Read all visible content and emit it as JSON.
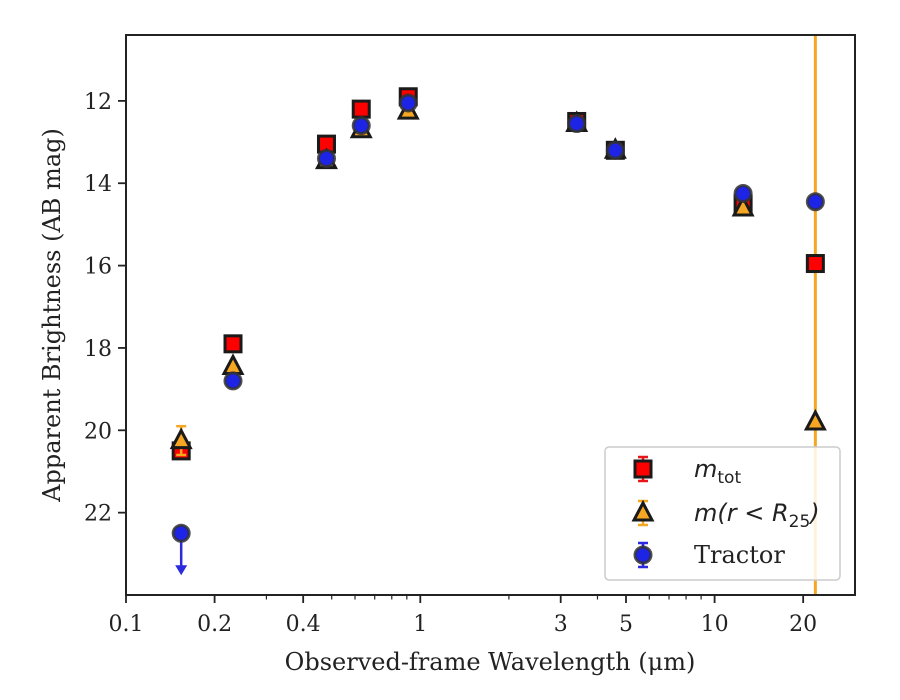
{
  "chart_data": {
    "type": "scatter",
    "xlabel": "Observed-frame Wavelength (μm)",
    "ylabel": "Apparent Brightness (AB mag)",
    "x_scale": "log",
    "xlim": [
      0.1,
      30
    ],
    "ylim": [
      24.0,
      10.4
    ],
    "y_inverted": true,
    "grid": false,
    "x_ticks": [
      0.1,
      0.2,
      0.4,
      1,
      3,
      5,
      10,
      20
    ],
    "x_tick_labels": [
      "0.1",
      "0.2",
      "0.4",
      "1",
      "3",
      "5",
      "10",
      "20"
    ],
    "y_ticks": [
      12,
      14,
      16,
      18,
      20,
      22
    ],
    "y_tick_labels": [
      "12",
      "14",
      "16",
      "18",
      "20",
      "22"
    ],
    "legend_position": "lower-right",
    "vertical_line": {
      "x": 22,
      "color": "#f5a623"
    },
    "series": [
      {
        "name": "m_tot",
        "marker": "square",
        "color": "#ff0000",
        "error_color": "#e8161a",
        "points": [
          {
            "x": 0.154,
            "y": 20.5,
            "err": 0.1
          },
          {
            "x": 0.231,
            "y": 17.9,
            "err": 0.05
          },
          {
            "x": 0.48,
            "y": 13.05,
            "err": 0.05
          },
          {
            "x": 0.63,
            "y": 12.2,
            "err": 0.05
          },
          {
            "x": 0.91,
            "y": 11.9,
            "err": 0.05
          },
          {
            "x": 3.4,
            "y": 12.5,
            "err": 0.05
          },
          {
            "x": 4.6,
            "y": 13.2,
            "err": 0.05
          },
          {
            "x": 12.5,
            "y": 14.5,
            "err": 0.05
          },
          {
            "x": 22,
            "y": 15.95,
            "err": 0.05
          }
        ]
      },
      {
        "name": "m(r < R25)",
        "marker": "triangle",
        "color": "#f5a623",
        "error_color": "#f5a623",
        "points": [
          {
            "x": 0.154,
            "y": 20.25,
            "err": 0.35
          },
          {
            "x": 0.231,
            "y": 18.45,
            "err": 0.05
          },
          {
            "x": 0.48,
            "y": 13.45,
            "err": 0.05
          },
          {
            "x": 0.63,
            "y": 12.7,
            "err": 0.05
          },
          {
            "x": 0.91,
            "y": 12.25,
            "err": 0.05
          },
          {
            "x": 3.4,
            "y": 12.55,
            "err": 0.05
          },
          {
            "x": 4.6,
            "y": 13.2,
            "err": 0.05
          },
          {
            "x": 12.5,
            "y": 14.6,
            "err": 0.05
          },
          {
            "x": 22,
            "y": 19.8,
            "err": 0.05
          }
        ]
      },
      {
        "name": "Tractor",
        "marker": "circle",
        "color": "#1d24e6",
        "error_color": "#2b2bdd",
        "points": [
          {
            "x": 0.154,
            "y": 22.5,
            "err": 0.05,
            "upper_limit": true
          },
          {
            "x": 0.231,
            "y": 18.8,
            "err": 0.05
          },
          {
            "x": 0.48,
            "y": 13.4,
            "err": 0.05
          },
          {
            "x": 0.63,
            "y": 12.6,
            "err": 0.05
          },
          {
            "x": 0.91,
            "y": 12.05,
            "err": 0.05
          },
          {
            "x": 3.4,
            "y": 12.55,
            "err": 0.05
          },
          {
            "x": 4.6,
            "y": 13.2,
            "err": 0.05
          },
          {
            "x": 12.5,
            "y": 14.25,
            "err": 0.05
          },
          {
            "x": 22,
            "y": 14.45,
            "err": 0.05
          }
        ]
      }
    ],
    "legend": {
      "entries": [
        {
          "label_main": "m",
          "label_sub": "tot",
          "label_rest": ""
        },
        {
          "label_main": "m(r < R",
          "label_sub": "25",
          "label_rest": ")"
        },
        {
          "label_main": "Tractor",
          "label_sub": "",
          "label_rest": ""
        }
      ]
    }
  }
}
